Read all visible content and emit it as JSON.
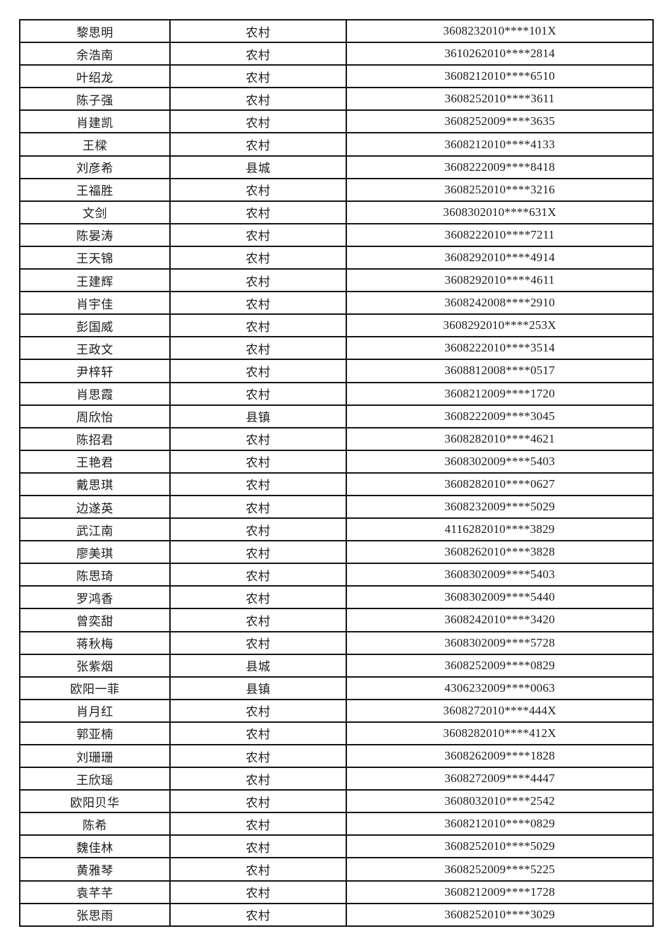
{
  "table": {
    "rows": [
      [
        "黎思明",
        "农村",
        "3608232010****101X"
      ],
      [
        "余浩南",
        "农村",
        "3610262010****2814"
      ],
      [
        "叶绍龙",
        "农村",
        "3608212010****6510"
      ],
      [
        "陈子强",
        "农村",
        "3608252010****3611"
      ],
      [
        "肖建凯",
        "农村",
        "3608252009****3635"
      ],
      [
        "王樑",
        "农村",
        "3608212010****4133"
      ],
      [
        "刘彦希",
        "县城",
        "3608222009****8418"
      ],
      [
        "王福胜",
        "农村",
        "3608252010****3216"
      ],
      [
        "文剑",
        "农村",
        "3608302010****631X"
      ],
      [
        "陈晏涛",
        "农村",
        "3608222010****7211"
      ],
      [
        "王天锦",
        "农村",
        "3608292010****4914"
      ],
      [
        "王建辉",
        "农村",
        "3608292010****4611"
      ],
      [
        "肖宇佳",
        "农村",
        "3608242008****2910"
      ],
      [
        "彭国威",
        "农村",
        "3608292010****253X"
      ],
      [
        "王政文",
        "农村",
        "3608222010****3514"
      ],
      [
        "尹梓轩",
        "农村",
        "3608812008****0517"
      ],
      [
        "肖思霞",
        "农村",
        "3608212009****1720"
      ],
      [
        "周欣怡",
        "县镇",
        "3608222009****3045"
      ],
      [
        "陈招君",
        "农村",
        "3608282010****4621"
      ],
      [
        "王艳君",
        "农村",
        "3608302009****5403"
      ],
      [
        "戴思琪",
        "农村",
        "3608282010****0627"
      ],
      [
        "边遂英",
        "农村",
        "3608232009****5029"
      ],
      [
        "武江南",
        "农村",
        "4116282010****3829"
      ],
      [
        "廖美琪",
        "农村",
        "3608262010****3828"
      ],
      [
        "陈思琦",
        "农村",
        "3608302009****5403"
      ],
      [
        "罗鸿香",
        "农村",
        "3608302009****5440"
      ],
      [
        "曾奕甜",
        "农村",
        "3608242010****3420"
      ],
      [
        "蒋秋梅",
        "农村",
        "3608302009****5728"
      ],
      [
        "张紫烟",
        "县城",
        "3608252009****0829"
      ],
      [
        "欧阳一菲",
        "县镇",
        "4306232009****0063"
      ],
      [
        "肖月红",
        "农村",
        "3608272010****444X"
      ],
      [
        "郭亚楠",
        "农村",
        "3608282010****412X"
      ],
      [
        "刘珊珊",
        "农村",
        "3608262009****1828"
      ],
      [
        "王欣瑶",
        "农村",
        "3608272009****4447"
      ],
      [
        "欧阳贝华",
        "农村",
        "3608032010****2542"
      ],
      [
        "陈希",
        "农村",
        "3608212010****0829"
      ],
      [
        "魏佳林",
        "农村",
        "3608252010****5029"
      ],
      [
        "黄雅琴",
        "农村",
        "3608252009****5225"
      ],
      [
        "袁芊芊",
        "农村",
        "3608212009****1728"
      ],
      [
        "张思雨",
        "农村",
        "3608252010****3029"
      ]
    ]
  }
}
